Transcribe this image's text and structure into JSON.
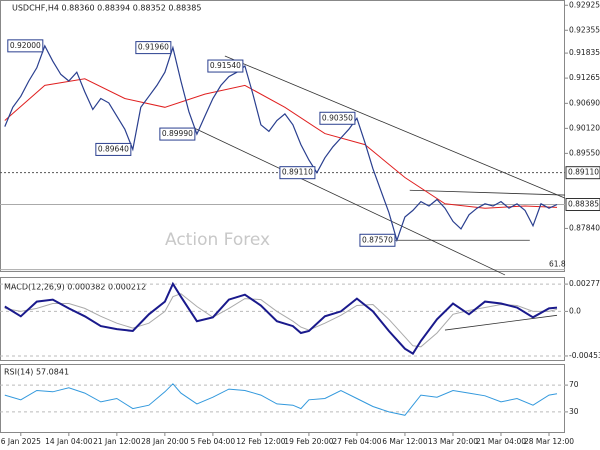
{
  "chart_data": {
    "type": "line",
    "title": "USDCHF,H4  0.88360 0.88394 0.88352 0.88385",
    "watermark": "Action Forex",
    "x": [
      0,
      1,
      2,
      3,
      4,
      5,
      6,
      7,
      8,
      9,
      10,
      11,
      12,
      13,
      14,
      15,
      16,
      17,
      18,
      19,
      20,
      21,
      22,
      23,
      24,
      25,
      26,
      27,
      28,
      29,
      30,
      31,
      32,
      33,
      34,
      35,
      36,
      37,
      38,
      39,
      40,
      41,
      42,
      43,
      44,
      45,
      46,
      47,
      48,
      49,
      50,
      51,
      52,
      53,
      54,
      55,
      56,
      57,
      58,
      59,
      60,
      61,
      62,
      63,
      64,
      65,
      66,
      67,
      68,
      69
    ],
    "xlim": [
      -0.6,
      70
    ],
    "xticks": [
      {
        "value": 2,
        "label": "6 Jan 2025"
      },
      {
        "value": 8,
        "label": "14 Jan 04:00"
      },
      {
        "value": 14,
        "label": "21 Jan 12:00"
      },
      {
        "value": 20,
        "label": "28 Jan 20:00"
      },
      {
        "value": 26,
        "label": "5 Feb 04:00"
      },
      {
        "value": 32,
        "label": "12 Feb 12:00"
      },
      {
        "value": 38,
        "label": "19 Feb 20:00"
      },
      {
        "value": 44,
        "label": "27 Feb 04:00"
      },
      {
        "value": 50,
        "label": "6 Mar 12:00"
      },
      {
        "value": 56,
        "label": "13 Mar 20:00"
      },
      {
        "value": 62,
        "label": "21 Mar 04:00"
      },
      {
        "value": 68,
        "label": "28 Mar 12:00"
      }
    ],
    "series": [
      {
        "name": "USDCHF",
        "color": "#2a3f8f",
        "values": [
          0.9016,
          0.906,
          0.9085,
          0.912,
          0.915,
          0.92,
          0.9165,
          0.9135,
          0.912,
          0.914,
          0.9095,
          0.9055,
          0.908,
          0.907,
          0.904,
          0.901,
          0.8964,
          0.906,
          0.9085,
          0.911,
          0.914,
          0.9196,
          0.912,
          0.905,
          0.8999,
          0.904,
          0.908,
          0.911,
          0.913,
          0.914,
          0.9154,
          0.909,
          0.902,
          0.9005,
          0.903,
          0.9045,
          0.902,
          0.8975,
          0.894,
          0.8911,
          0.8945,
          0.897,
          0.899,
          0.901,
          0.9035,
          0.898,
          0.892,
          0.887,
          0.882,
          0.8757,
          0.881,
          0.8825,
          0.8845,
          0.8835,
          0.885,
          0.883,
          0.88,
          0.8783,
          0.8815,
          0.883,
          0.884,
          0.8835,
          0.8845,
          0.883,
          0.884,
          0.8825,
          0.879,
          0.884,
          0.883,
          0.88385
        ]
      }
    ],
    "ma": {
      "color": "#e02020",
      "x": [
        0,
        5,
        10,
        15,
        20,
        25,
        30,
        35,
        40,
        45,
        50,
        55,
        60,
        65,
        69
      ],
      "values": [
        0.903,
        0.911,
        0.9125,
        0.908,
        0.906,
        0.909,
        0.911,
        0.906,
        0.9,
        0.8975,
        0.89,
        0.884,
        0.883,
        0.8835,
        0.8832
      ]
    },
    "ylim": [
      0.86847,
      0.93022
    ],
    "yticks": [
      0.92925,
      0.92355,
      0.91835,
      0.91265,
      {
        "value": 0.9069,
        "label": "0.90690"
      },
      {
        "value": 0.9012,
        "label": "0.90120"
      },
      {
        "value": 0.8955,
        "label": "0.89550"
      },
      {
        "value": 0.8784,
        "label": "0.87840"
      }
    ],
    "annotations": [
      {
        "label": "0.92000",
        "x": 5,
        "y": 0.92
      },
      {
        "label": "0.89640",
        "x": 16,
        "y": 0.8964
      },
      {
        "label": "0.91960",
        "x": 21,
        "y": 0.9196
      },
      {
        "label": "0.89990",
        "x": 24,
        "y": 0.8999
      },
      {
        "label": "0.91540",
        "x": 30,
        "y": 0.9154
      },
      {
        "label": "0.89110",
        "x": 39,
        "y": 0.8911
      },
      {
        "label": "0.90350",
        "x": 44,
        "y": 0.9035
      },
      {
        "label": "0.87570",
        "x": 49,
        "y": 0.8757
      }
    ],
    "levels": [
      {
        "value": 0.8911,
        "label": "0.89110",
        "style": "dotted"
      },
      {
        "value": 0.88385,
        "label": "0.88385",
        "style": "solid"
      },
      {
        "value": 0.869,
        "label": "61.8",
        "style": "solid"
      }
    ],
    "trendlines": [
      {
        "x": [
          27.5,
          70
        ],
        "y": [
          0.9177,
          0.8853
        ]
      },
      {
        "x": [
          23.75,
          62.5
        ],
        "y": [
          0.9012,
          0.8678
        ]
      },
      {
        "x": [
          50.6,
          70
        ],
        "y": [
          0.8871,
          0.886
        ]
      },
      {
        "x": [
          48.8,
          65.6
        ],
        "y": [
          0.8757,
          0.8757
        ]
      }
    ],
    "macd": {
      "title": "MACD(12,26,9) 0.000382 0.000212",
      "x": [
        0,
        2,
        4,
        6,
        8,
        10,
        12,
        14,
        16,
        18,
        20,
        21,
        22,
        24,
        26,
        28,
        30,
        32,
        34,
        36,
        37,
        38,
        40,
        42,
        44,
        46,
        48,
        50,
        51,
        52,
        54,
        56,
        58,
        60,
        62,
        64,
        66,
        68,
        69
      ],
      "macd": {
        "color": "#1a1a8c",
        "values": [
          0.0005,
          -0.0005,
          0.001,
          0.0012,
          0.0003,
          -0.0005,
          -0.0015,
          -0.0018,
          -0.002,
          -0.0003,
          0.001,
          0.0028,
          0.0015,
          -0.001,
          -0.0006,
          0.0012,
          0.0017,
          0.0006,
          -0.001,
          -0.0015,
          -0.0022,
          -0.002,
          -0.0005,
          0,
          0.0013,
          0,
          -0.002,
          -0.0038,
          -0.0043,
          -0.003,
          -0.0008,
          0.0008,
          -0.0003,
          0.001,
          0.0008,
          0.0004,
          -0.0006,
          0.0003,
          0.000382
        ]
      },
      "signal": {
        "color": "#aaaaaa",
        "values": [
          0.0003,
          0,
          0.0003,
          0.0008,
          0.0008,
          0.0003,
          -0.0005,
          -0.0012,
          -0.0017,
          -0.0012,
          0,
          0.0015,
          0.0018,
          0.0005,
          -0.0006,
          0.0003,
          0.0013,
          0.0012,
          0,
          -0.001,
          -0.0016,
          -0.0019,
          -0.0012,
          -0.0004,
          0.0006,
          0.0007,
          -0.0008,
          -0.0026,
          -0.0035,
          -0.0036,
          -0.0022,
          -0.0003,
          0.0001,
          0.0004,
          0.0007,
          0.0006,
          0,
          0,
          0.000212
        ]
      },
      "ylim": [
        -0.00505,
        0.0034
      ],
      "yticks": [
        0.002779,
        {
          "value": 0,
          "label": "0.0"
        },
        -0.004538
      ],
      "trendline": {
        "x": [
          55,
          69
        ],
        "y": [
          -0.0019,
          -0.0004
        ]
      }
    },
    "rsi": {
      "title": "RSI(14) 57.0841",
      "color": "#3399dd",
      "values": [
        55,
        48,
        62,
        60,
        66,
        58,
        45,
        50,
        35,
        40,
        60,
        72,
        58,
        42,
        52,
        64,
        62,
        55,
        42,
        40,
        35,
        48,
        50,
        62,
        50,
        38,
        30,
        25,
        40,
        55,
        52,
        62,
        58,
        54,
        45,
        50,
        40,
        55,
        57.0841
      ],
      "ylim": [
        0,
        100
      ],
      "yticks": [
        70,
        30
      ]
    }
  }
}
